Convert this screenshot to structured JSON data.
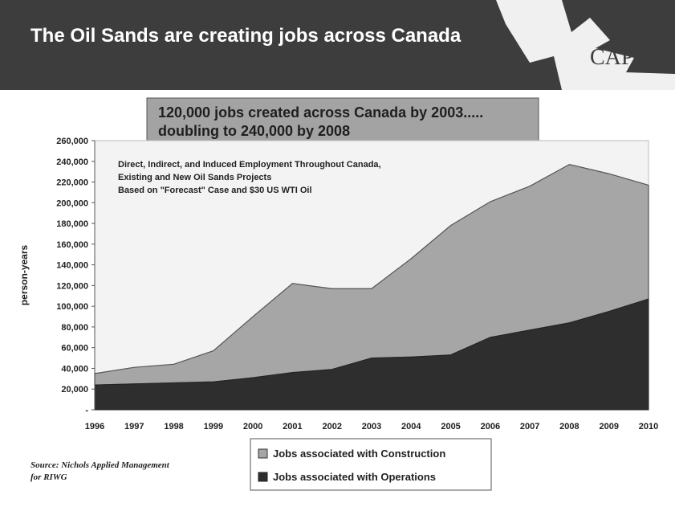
{
  "slide": {
    "title": "The Oil Sands are creating jobs across Canada",
    "logo_text": "CAPP",
    "callout_line1": "120,000 jobs created across Canada by 2003.....",
    "callout_line2": "doubling to 240,000 by 2008",
    "source_line1": "Source: Nichols Applied Management",
    "source_line2": "for RIWG"
  },
  "colors": {
    "header": "#3d3d3d",
    "callout_bg": "#a3a3a3",
    "plot_bg": "#f3f3f3",
    "construction": "#a6a6a6",
    "operations": "#2e2e2e"
  },
  "chart_data": {
    "type": "area",
    "stacked": true,
    "ylabel": "person-years",
    "annotation": [
      "Direct, Indirect, and Induced Employment Throughout Canada,",
      "Existing and New Oil Sands Projects",
      "Based on \"Forecast\" Case and $30 US WTI Oil"
    ],
    "x": [
      "1996",
      "1997",
      "1998",
      "1999",
      "2000",
      "2001",
      "2002",
      "2003",
      "2004",
      "2005",
      "2006",
      "2007",
      "2008",
      "2009",
      "2010"
    ],
    "ylim": [
      0,
      260000
    ],
    "yticks": [
      0,
      20000,
      40000,
      60000,
      80000,
      100000,
      120000,
      140000,
      160000,
      180000,
      200000,
      220000,
      240000,
      260000
    ],
    "ytick_labels": [
      "-",
      "20,000",
      "40,000",
      "60,000",
      "80,000",
      "100,000",
      "120,000",
      "140,000",
      "160,000",
      "180,000",
      "200,000",
      "220,000",
      "240,000",
      "260,000"
    ],
    "series": [
      {
        "name": "Jobs associated with Operations",
        "values": [
          24000,
          25000,
          26000,
          27000,
          31000,
          36000,
          39000,
          50000,
          51000,
          53000,
          70000,
          77000,
          84000,
          95000,
          107000
        ]
      },
      {
        "name": "Jobs associated with Construction",
        "values": [
          11000,
          16000,
          18000,
          30000,
          59000,
          86000,
          78000,
          67000,
          95000,
          125000,
          131000,
          139000,
          153000,
          133000,
          110000
        ]
      }
    ],
    "legend_position": "bottom"
  }
}
